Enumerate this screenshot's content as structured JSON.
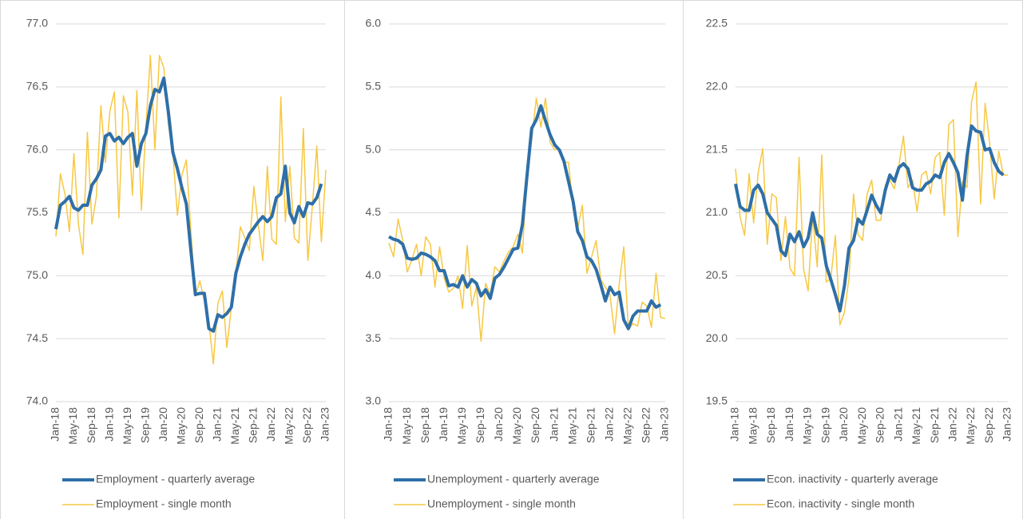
{
  "chart_data": [
    {
      "type": "line",
      "grid": true,
      "categories": [
        "Jan-18",
        null,
        null,
        null,
        "May-18",
        null,
        null,
        null,
        "Sep-18",
        null,
        null,
        null,
        "Jan-19",
        null,
        null,
        null,
        "May-19",
        null,
        null,
        null,
        "Sep-19",
        null,
        null,
        null,
        "Jan-20",
        null,
        null,
        null,
        "May-20",
        null,
        null,
        null,
        "Sep-20",
        null,
        null,
        null,
        "Jan-21",
        null,
        null,
        null,
        "May-21",
        null,
        null,
        null,
        "Sep-21",
        null,
        null,
        null,
        "Jan-22",
        null,
        null,
        null,
        "May-22",
        null,
        null,
        null,
        "Sep-22",
        null,
        null,
        null,
        "Jan-23"
      ],
      "ylim": [
        74,
        77
      ],
      "yticks": [
        {
          "value": 74,
          "label": "74.0"
        },
        {
          "value": 74.5,
          "label": "74.5"
        },
        {
          "value": 75,
          "label": "75.0"
        },
        {
          "value": 75.5,
          "label": "75.5"
        },
        {
          "value": 76,
          "label": "76.0"
        },
        {
          "value": 76.5,
          "label": "76.5"
        },
        {
          "value": 77,
          "label": "77.0"
        }
      ],
      "series": [
        {
          "name": "Employment - quarterly average",
          "color": "#2e6fa8",
          "values": [
            75.37,
            75.56,
            75.59,
            75.63,
            75.54,
            75.52,
            75.56,
            75.56,
            75.72,
            75.77,
            75.84,
            76.11,
            76.13,
            76.07,
            76.1,
            76.05,
            76.1,
            76.13,
            75.87,
            76.05,
            76.13,
            76.35,
            76.48,
            76.46,
            76.57,
            76.3,
            75.98,
            75.85,
            75.7,
            75.57,
            75.2,
            74.85,
            74.86,
            74.86,
            74.58,
            74.56,
            74.69,
            74.67,
            74.7,
            74.75,
            75.02,
            75.15,
            75.25,
            75.33,
            75.38,
            75.43,
            75.47,
            75.43,
            75.47,
            75.62,
            75.65,
            75.87,
            75.5,
            75.42,
            75.55,
            75.47,
            75.58,
            75.57,
            75.62,
            75.73,
            null
          ]
        },
        {
          "name": "Employment - single month",
          "color": "#f7c843",
          "values": [
            75.31,
            75.81,
            75.65,
            75.35,
            75.97,
            75.41,
            75.17,
            76.14,
            75.41,
            75.63,
            76.35,
            75.9,
            76.31,
            76.46,
            75.46,
            76.43,
            76.3,
            75.64,
            76.47,
            75.52,
            76.18,
            76.75,
            76.0,
            76.75,
            76.65,
            76.2,
            75.98,
            75.48,
            75.8,
            75.92,
            75.36,
            74.84,
            74.96,
            74.8,
            74.63,
            74.3,
            74.78,
            74.88,
            74.43,
            74.75,
            75.0,
            75.39,
            75.3,
            75.2,
            75.71,
            75.4,
            75.12,
            75.87,
            75.29,
            75.25,
            76.42,
            75.43,
            75.87,
            75.3,
            75.26,
            76.17,
            75.12,
            75.55,
            76.03,
            75.27,
            75.84
          ]
        }
      ]
    },
    {
      "type": "line",
      "grid": true,
      "categories": [
        "Jan-18",
        null,
        null,
        null,
        "May-18",
        null,
        null,
        null,
        "Sep-18",
        null,
        null,
        null,
        "Jan-19",
        null,
        null,
        null,
        "May-19",
        null,
        null,
        null,
        "Sep-19",
        null,
        null,
        null,
        "Jan-20",
        null,
        null,
        null,
        "May-20",
        null,
        null,
        null,
        "Sep-20",
        null,
        null,
        null,
        "Jan-21",
        null,
        null,
        null,
        "May-21",
        null,
        null,
        null,
        "Sep-21",
        null,
        null,
        null,
        "Jan-22",
        null,
        null,
        null,
        "May-22",
        null,
        null,
        null,
        "Sep-22",
        null,
        null,
        null,
        "Jan-23"
      ],
      "ylim": [
        3,
        6
      ],
      "yticks": [
        {
          "value": 3,
          "label": "3.0"
        },
        3.5,
        {
          "value": 4,
          "label": "4.0"
        },
        4.5,
        {
          "value": 5,
          "label": "5.0"
        },
        5.5,
        {
          "value": 6,
          "label": "6.0"
        }
      ],
      "series": [
        {
          "name": "Unemployment - quarterly average",
          "color": "#2e6fa8",
          "values": [
            4.31,
            4.29,
            4.28,
            4.25,
            4.14,
            4.13,
            4.14,
            4.18,
            4.17,
            4.15,
            4.12,
            4.04,
            4.04,
            3.92,
            3.93,
            3.91,
            4.0,
            3.91,
            3.97,
            3.94,
            3.84,
            3.89,
            3.82,
            3.98,
            4.01,
            4.07,
            4.14,
            4.21,
            4.22,
            4.41,
            4.8,
            5.17,
            5.24,
            5.35,
            5.23,
            5.12,
            5.04,
            5.0,
            4.91,
            4.75,
            4.59,
            4.35,
            4.28,
            4.15,
            4.12,
            4.05,
            3.93,
            3.8,
            3.91,
            3.85,
            3.87,
            3.65,
            3.58,
            3.68,
            3.72,
            3.72,
            3.72,
            3.8,
            3.75,
            3.77,
            null
          ]
        },
        {
          "name": "Unemployment - single month",
          "color": "#f7c843",
          "values": [
            4.26,
            4.15,
            4.45,
            4.28,
            4.03,
            4.13,
            4.25,
            4.0,
            4.31,
            4.25,
            3.91,
            4.23,
            3.98,
            3.87,
            3.9,
            4.0,
            3.74,
            4.24,
            3.76,
            3.91,
            3.48,
            3.94,
            3.85,
            4.07,
            4.03,
            4.12,
            4.19,
            4.23,
            4.33,
            4.18,
            4.85,
            5.08,
            5.41,
            5.18,
            5.41,
            5.06,
            5.0,
            5.01,
            4.9,
            4.9,
            4.53,
            4.38,
            4.56,
            4.02,
            4.15,
            4.28,
            3.97,
            3.91,
            3.85,
            3.54,
            3.93,
            4.23,
            3.57,
            3.62,
            3.6,
            3.79,
            3.76,
            3.59,
            4.02,
            3.67,
            3.66
          ]
        }
      ]
    },
    {
      "type": "line",
      "grid": true,
      "categories": [
        "Jan-18",
        null,
        null,
        null,
        "May-18",
        null,
        null,
        null,
        "Sep-18",
        null,
        null,
        null,
        "Jan-19",
        null,
        null,
        null,
        "May-19",
        null,
        null,
        null,
        "Sep-19",
        null,
        null,
        null,
        "Jan-20",
        null,
        null,
        null,
        "May-20",
        null,
        null,
        null,
        "Sep-20",
        null,
        null,
        null,
        "Jan-21",
        null,
        null,
        null,
        "May-21",
        null,
        null,
        null,
        "Sep-21",
        null,
        null,
        null,
        "Jan-22",
        null,
        null,
        null,
        "May-22",
        null,
        null,
        null,
        "Sep-22",
        null,
        null,
        null,
        "Jan-23"
      ],
      "ylim": [
        19.5,
        22.5
      ],
      "yticks": [
        19.5,
        {
          "value": 20,
          "label": "20.0"
        },
        20.5,
        {
          "value": 21,
          "label": "21.0"
        },
        21.5,
        {
          "value": 22,
          "label": "22.0"
        },
        22.5
      ],
      "series": [
        {
          "name": "Econ. inactivity - quarterly average",
          "color": "#2e6fa8",
          "values": [
            21.23,
            21.05,
            21.02,
            21.02,
            21.18,
            21.22,
            21.15,
            21.0,
            20.95,
            20.9,
            20.7,
            20.66,
            20.83,
            20.77,
            20.85,
            20.73,
            20.8,
            21.0,
            20.83,
            20.8,
            20.58,
            20.47,
            20.35,
            20.22,
            20.42,
            20.72,
            20.78,
            20.95,
            20.91,
            21.02,
            21.14,
            21.06,
            21.0,
            21.18,
            21.3,
            21.25,
            21.36,
            21.39,
            21.35,
            21.2,
            21.18,
            21.18,
            21.23,
            21.25,
            21.3,
            21.28,
            21.4,
            21.47,
            21.4,
            21.32,
            21.1,
            21.45,
            21.69,
            21.65,
            21.64,
            21.5,
            21.51,
            21.4,
            21.33,
            21.3,
            null
          ]
        },
        {
          "name": "Econ. inactivity - single month",
          "color": "#f7c843",
          "values": [
            21.35,
            20.97,
            20.82,
            21.31,
            20.92,
            21.32,
            21.51,
            20.75,
            21.15,
            21.12,
            20.62,
            20.97,
            20.56,
            20.5,
            21.44,
            20.55,
            20.38,
            20.98,
            20.57,
            21.46,
            20.45,
            20.48,
            20.82,
            20.11,
            20.21,
            20.48,
            21.15,
            20.83,
            20.78,
            21.15,
            21.26,
            20.94,
            20.94,
            21.22,
            21.26,
            21.19,
            21.38,
            21.61,
            21.2,
            21.26,
            21.01,
            21.3,
            21.33,
            21.15,
            21.44,
            21.48,
            20.98,
            21.7,
            21.74,
            20.81,
            21.25,
            21.2,
            21.88,
            22.04,
            21.07,
            21.87,
            21.55,
            21.11,
            21.49,
            21.3,
            21.3
          ]
        }
      ]
    }
  ]
}
